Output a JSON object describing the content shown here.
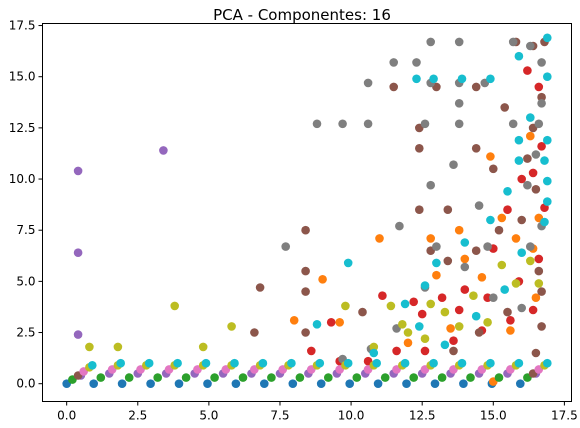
{
  "chart_data": {
    "type": "scatter",
    "title": "PCA - Componentes: 16",
    "xlabel": "",
    "ylabel": "",
    "xlim": [
      -0.85,
      17.75
    ],
    "ylim": [
      -0.87,
      17.6
    ],
    "xticks": [
      "0.0",
      "2.5",
      "5.0",
      "7.5",
      "10.0",
      "12.5",
      "15.0",
      "17.5"
    ],
    "yticks": [
      "0.0",
      "2.5",
      "5.0",
      "7.5",
      "10.0",
      "12.5",
      "15.0",
      "17.5"
    ],
    "grid": false,
    "legend": "none",
    "colors": [
      "#1f77b4",
      "#ff7f0e",
      "#2ca02c",
      "#d62728",
      "#9467bd",
      "#8c564b",
      "#e377c2",
      "#7f7f7f",
      "#bcbd22",
      "#17becf"
    ],
    "series": [
      {
        "color": "#1f77b4",
        "points": [
          [
            0.0,
            0.0
          ],
          [
            0.95,
            0.0
          ],
          [
            1.95,
            0.0
          ],
          [
            2.95,
            0.0
          ],
          [
            3.95,
            0.0
          ],
          [
            4.95,
            0.0
          ],
          [
            5.95,
            0.0
          ],
          [
            6.95,
            0.0
          ],
          [
            7.95,
            0.0
          ],
          [
            8.95,
            0.0
          ],
          [
            9.95,
            0.0
          ],
          [
            10.95,
            0.0
          ],
          [
            11.95,
            0.0
          ],
          [
            12.95,
            0.0
          ],
          [
            13.95,
            0.0
          ],
          [
            14.95,
            0.0
          ],
          [
            15.95,
            0.0
          ]
        ]
      },
      {
        "color": "#ff7f0e",
        "points": [
          [
            8.0,
            3.1
          ],
          [
            9.0,
            5.1
          ],
          [
            11.0,
            7.1
          ],
          [
            12.8,
            7.1
          ],
          [
            13.8,
            7.5
          ],
          [
            14.9,
            11.1
          ],
          [
            15.0,
            0.1
          ],
          [
            15.3,
            8.1
          ],
          [
            15.8,
            7.1
          ],
          [
            16.3,
            12.1
          ],
          [
            16.5,
            4.2
          ],
          [
            16.6,
            8.1
          ],
          [
            13.0,
            5.3
          ],
          [
            14.0,
            6.1
          ],
          [
            9.6,
            3.0
          ],
          [
            12.0,
            2.0
          ],
          [
            13.5,
            2.7
          ],
          [
            14.6,
            5.2
          ],
          [
            15.6,
            2.6
          ],
          [
            16.4,
            6.6
          ]
        ]
      },
      {
        "color": "#2ca02c",
        "points": [
          [
            0.2,
            0.2
          ],
          [
            1.2,
            0.3
          ],
          [
            2.2,
            0.3
          ],
          [
            3.2,
            0.3
          ],
          [
            4.2,
            0.3
          ],
          [
            5.2,
            0.3
          ],
          [
            6.2,
            0.3
          ],
          [
            7.2,
            0.3
          ],
          [
            8.2,
            0.3
          ],
          [
            9.2,
            0.3
          ],
          [
            10.2,
            0.3
          ],
          [
            11.2,
            0.3
          ],
          [
            12.2,
            0.3
          ],
          [
            13.2,
            0.3
          ],
          [
            14.2,
            0.3
          ],
          [
            15.2,
            0.3
          ],
          [
            16.2,
            0.3
          ]
        ]
      },
      {
        "color": "#d62728",
        "points": [
          [
            8.6,
            1.6
          ],
          [
            9.6,
            1.1
          ],
          [
            10.6,
            1.1
          ],
          [
            11.6,
            1.6
          ],
          [
            12.6,
            1.6
          ],
          [
            13.6,
            2.1
          ],
          [
            14.6,
            2.6
          ],
          [
            15.6,
            3.1
          ],
          [
            16.4,
            3.6
          ],
          [
            16.6,
            6.1
          ],
          [
            16.8,
            8.6
          ],
          [
            16.4,
            10.3
          ],
          [
            16.6,
            14.5
          ],
          [
            16.2,
            15.3
          ],
          [
            12.5,
            3.4
          ],
          [
            13.2,
            4.2
          ],
          [
            14.0,
            4.6
          ],
          [
            15.0,
            6.6
          ],
          [
            15.5,
            8.5
          ],
          [
            16.0,
            10.0
          ],
          [
            11.1,
            4.3
          ],
          [
            9.3,
            3.0
          ],
          [
            12.2,
            4.0
          ],
          [
            13.8,
            3.6
          ],
          [
            14.8,
            4.2
          ],
          [
            15.9,
            5.0
          ],
          [
            16.7,
            11.6
          ]
        ]
      },
      {
        "color": "#9467bd",
        "points": [
          [
            0.4,
            10.4
          ],
          [
            0.4,
            6.4
          ],
          [
            0.4,
            2.4
          ],
          [
            3.4,
            11.4
          ],
          [
            0.5,
            0.4
          ],
          [
            1.5,
            0.5
          ],
          [
            2.5,
            0.5
          ],
          [
            3.5,
            0.5
          ],
          [
            4.5,
            0.5
          ],
          [
            5.5,
            0.5
          ],
          [
            6.5,
            0.5
          ],
          [
            7.5,
            0.5
          ],
          [
            8.5,
            0.5
          ],
          [
            9.5,
            0.5
          ],
          [
            10.5,
            0.5
          ],
          [
            11.5,
            0.5
          ],
          [
            12.5,
            0.5
          ],
          [
            13.5,
            0.5
          ],
          [
            14.5,
            0.5
          ],
          [
            15.5,
            0.5
          ],
          [
            16.5,
            0.5
          ]
        ]
      },
      {
        "color": "#8c564b",
        "points": [
          [
            0.4,
            0.4
          ],
          [
            6.6,
            2.5
          ],
          [
            6.8,
            4.7
          ],
          [
            8.4,
            2.5
          ],
          [
            8.4,
            4.5
          ],
          [
            8.4,
            5.5
          ],
          [
            8.4,
            7.5
          ],
          [
            10.4,
            3.5
          ],
          [
            11.5,
            14.5
          ],
          [
            12.4,
            8.5
          ],
          [
            12.4,
            11.5
          ],
          [
            12.4,
            12.5
          ],
          [
            13.0,
            14.5
          ],
          [
            13.4,
            8.5
          ],
          [
            14.4,
            11.5
          ],
          [
            14.4,
            14.5
          ],
          [
            15.4,
            13.5
          ],
          [
            15.8,
            16.7
          ],
          [
            16.4,
            16.5
          ],
          [
            16.8,
            16.7
          ],
          [
            16.4,
            12.5
          ],
          [
            16.5,
            9.5
          ],
          [
            16.6,
            5.5
          ],
          [
            16.4,
            0.5
          ],
          [
            12.8,
            6.5
          ],
          [
            13.4,
            6.0
          ],
          [
            14.4,
            6.5
          ],
          [
            15.2,
            7.5
          ],
          [
            16.0,
            8.0
          ],
          [
            16.2,
            11.0
          ],
          [
            16.7,
            14.0
          ],
          [
            15.0,
            10.5
          ],
          [
            13.6,
            1.6
          ],
          [
            14.5,
            2.5
          ],
          [
            15.5,
            3.5
          ],
          [
            16.5,
            1.5
          ],
          [
            16.7,
            2.8
          ],
          [
            16.7,
            4.5
          ]
        ]
      },
      {
        "color": "#e377c2",
        "points": [
          [
            0.6,
            0.6
          ],
          [
            1.6,
            0.7
          ],
          [
            2.6,
            0.7
          ],
          [
            3.6,
            0.7
          ],
          [
            4.6,
            0.7
          ],
          [
            5.6,
            0.7
          ],
          [
            6.6,
            0.7
          ],
          [
            7.6,
            0.7
          ],
          [
            8.6,
            0.7
          ],
          [
            9.6,
            0.7
          ],
          [
            10.6,
            0.7
          ],
          [
            11.6,
            0.7
          ],
          [
            12.6,
            0.7
          ],
          [
            13.6,
            0.7
          ],
          [
            14.6,
            0.7
          ],
          [
            15.6,
            0.7
          ],
          [
            16.6,
            0.7
          ]
        ]
      },
      {
        "color": "#7f7f7f",
        "points": [
          [
            7.7,
            6.7
          ],
          [
            8.8,
            12.7
          ],
          [
            9.7,
            12.7
          ],
          [
            10.6,
            12.7
          ],
          [
            10.6,
            14.7
          ],
          [
            11.5,
            15.7
          ],
          [
            11.7,
            7.7
          ],
          [
            12.3,
            15.7
          ],
          [
            12.8,
            16.7
          ],
          [
            13.8,
            16.7
          ],
          [
            12.8,
            9.7
          ],
          [
            12.8,
            14.7
          ],
          [
            12.6,
            12.7
          ],
          [
            13.8,
            14.7
          ],
          [
            13.8,
            13.7
          ],
          [
            13.8,
            12.7
          ],
          [
            14.5,
            8.7
          ],
          [
            14.7,
            14.7
          ],
          [
            15.7,
            16.7
          ],
          [
            15.7,
            12.7
          ],
          [
            16.3,
            16.5
          ],
          [
            16.7,
            15.7
          ],
          [
            16.7,
            13.7
          ],
          [
            16.6,
            12.7
          ],
          [
            16.2,
            9.7
          ],
          [
            16.3,
            6.7
          ],
          [
            14.8,
            6.7
          ],
          [
            12.6,
            4.7
          ],
          [
            11.6,
            2.7
          ],
          [
            10.7,
            1.7
          ],
          [
            9.7,
            1.2
          ],
          [
            13.0,
            6.7
          ],
          [
            14.0,
            5.7
          ],
          [
            15.0,
            4.2
          ],
          [
            16.0,
            3.7
          ],
          [
            16.7,
            7.7
          ],
          [
            16.5,
            11.2
          ],
          [
            13.6,
            10.7
          ]
        ]
      },
      {
        "color": "#bcbd22",
        "points": [
          [
            0.8,
            1.8
          ],
          [
            1.8,
            1.8
          ],
          [
            3.8,
            3.8
          ],
          [
            4.8,
            1.8
          ],
          [
            5.8,
            2.8
          ],
          [
            0.8,
            0.8
          ],
          [
            1.8,
            0.9
          ],
          [
            2.8,
            0.9
          ],
          [
            3.8,
            0.9
          ],
          [
            4.8,
            0.9
          ],
          [
            5.8,
            0.9
          ],
          [
            6.8,
            0.9
          ],
          [
            7.8,
            0.9
          ],
          [
            8.8,
            0.9
          ],
          [
            9.8,
            0.9
          ],
          [
            10.8,
            0.9
          ],
          [
            11.8,
            0.9
          ],
          [
            12.8,
            0.9
          ],
          [
            13.8,
            0.9
          ],
          [
            14.8,
            0.9
          ],
          [
            15.8,
            0.9
          ],
          [
            16.8,
            0.9
          ],
          [
            9.8,
            3.8
          ],
          [
            10.8,
            1.8
          ],
          [
            11.8,
            2.9
          ],
          [
            12.8,
            3.9
          ],
          [
            13.8,
            2.8
          ],
          [
            14.8,
            3.0
          ],
          [
            15.8,
            4.9
          ],
          [
            16.6,
            4.9
          ],
          [
            12.6,
            2.2
          ],
          [
            13.3,
            3.5
          ],
          [
            14.3,
            4.3
          ],
          [
            15.3,
            5.8
          ],
          [
            16.3,
            6.0
          ],
          [
            11.4,
            3.8
          ],
          [
            12.0,
            2.5
          ]
        ]
      },
      {
        "color": "#17becf",
        "points": [
          [
            0.9,
            0.9
          ],
          [
            1.9,
            1.0
          ],
          [
            2.9,
            1.0
          ],
          [
            3.9,
            1.0
          ],
          [
            4.9,
            1.0
          ],
          [
            5.9,
            1.0
          ],
          [
            6.9,
            1.0
          ],
          [
            7.9,
            1.0
          ],
          [
            8.9,
            1.0
          ],
          [
            9.9,
            1.0
          ],
          [
            10.9,
            1.0
          ],
          [
            11.9,
            1.0
          ],
          [
            12.9,
            1.0
          ],
          [
            13.9,
            1.0
          ],
          [
            14.9,
            1.0
          ],
          [
            15.9,
            1.0
          ],
          [
            16.9,
            1.0
          ],
          [
            8.8,
            2.9
          ],
          [
            9.9,
            5.9
          ],
          [
            12.3,
            14.9
          ],
          [
            12.9,
            14.9
          ],
          [
            13.9,
            14.9
          ],
          [
            14.9,
            14.9
          ],
          [
            15.9,
            16.0
          ],
          [
            16.9,
            16.9
          ],
          [
            16.9,
            11.9
          ],
          [
            16.8,
            10.9
          ],
          [
            16.9,
            9.9
          ],
          [
            16.9,
            8.9
          ],
          [
            16.8,
            7.9
          ],
          [
            15.9,
            10.9
          ],
          [
            15.9,
            11.9
          ],
          [
            14.9,
            8.0
          ],
          [
            14.0,
            6.9
          ],
          [
            13.0,
            5.9
          ],
          [
            12.6,
            4.8
          ],
          [
            11.9,
            3.9
          ],
          [
            15.5,
            9.4
          ],
          [
            16.3,
            13.0
          ],
          [
            13.3,
            1.9
          ],
          [
            14.4,
            3.3
          ],
          [
            15.4,
            4.6
          ],
          [
            16.0,
            6.4
          ],
          [
            10.8,
            1.5
          ],
          [
            12.4,
            2.8
          ],
          [
            16.9,
            15.0
          ]
        ]
      }
    ]
  }
}
